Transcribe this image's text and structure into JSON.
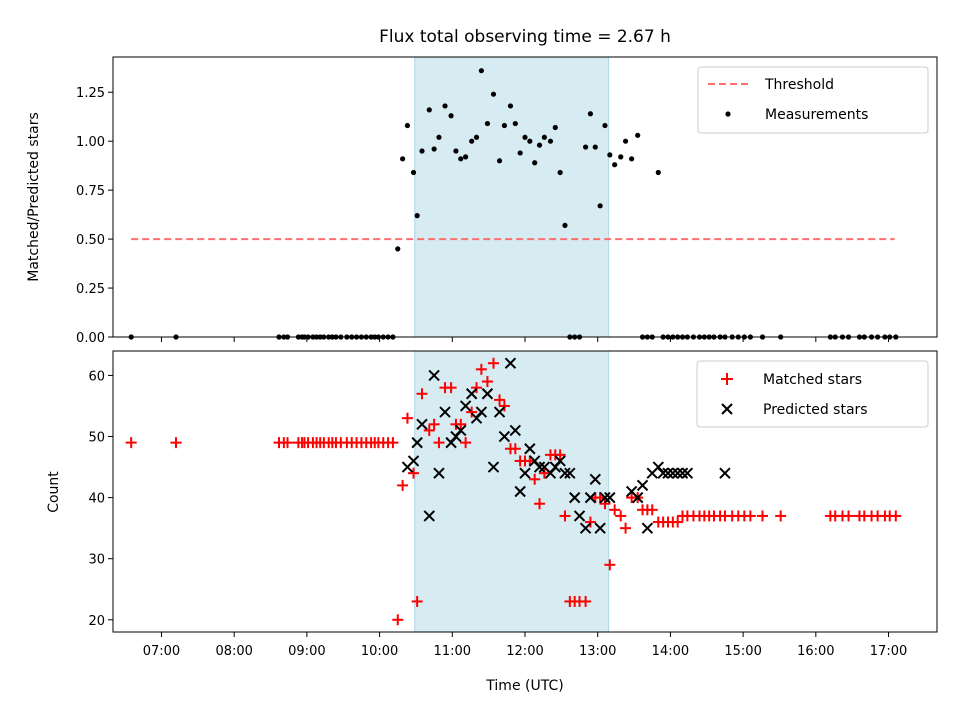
{
  "title": "Flux total observing time = 2.67 h",
  "colors": {
    "threshold": "#ff6f6f",
    "measurements": "#000000",
    "matched": "#ff0000",
    "predicted": "#000000",
    "span_fill": "#add8e6"
  },
  "chart_data": [
    {
      "type": "scatter",
      "panel": "top",
      "ylabel": "Matched/Predicted stars",
      "xlabel": "",
      "xlim": [
        "06:20",
        "17:40"
      ],
      "ylim": [
        0,
        1.43
      ],
      "yticks": [
        0.0,
        0.25,
        0.5,
        0.75,
        1.0,
        1.25
      ],
      "ytick_labels": [
        "0.00",
        "0.25",
        "0.50",
        "0.75",
        "1.00",
        "1.25"
      ],
      "xticks": [
        "07:00",
        "08:00",
        "09:00",
        "10:00",
        "11:00",
        "12:00",
        "13:00",
        "14:00",
        "15:00",
        "16:00",
        "17:00"
      ],
      "tick_labels_shown": false,
      "shaded_span": {
        "x0": "10:29",
        "x1": "13:09"
      },
      "legend": {
        "position": "upper right",
        "entries": [
          "Threshold",
          "Measurements"
        ]
      },
      "threshold": {
        "name": "Threshold",
        "y": 0.5,
        "x0": "06:35",
        "x1": "17:05",
        "style": "dashed"
      },
      "series": [
        {
          "name": "Measurements",
          "marker": "dot",
          "x": [
            "06:35",
            "07:12",
            "08:37",
            "08:41",
            "08:44",
            "08:53",
            "08:56",
            "08:58",
            "09:01",
            "09:05",
            "09:08",
            "09:11",
            "09:14",
            "09:18",
            "09:21",
            "09:24",
            "09:28",
            "09:33",
            "09:37",
            "09:41",
            "09:45",
            "09:49",
            "09:53",
            "09:56",
            "09:59",
            "10:03",
            "10:07",
            "10:11",
            "10:15",
            "10:19",
            "10:23",
            "10:28",
            "10:31",
            "10:35",
            "10:41",
            "10:45",
            "10:49",
            "10:54",
            "10:59",
            "11:03",
            "11:07",
            "11:11",
            "11:16",
            "11:20",
            "11:24",
            "11:29",
            "11:34",
            "11:39",
            "11:43",
            "11:48",
            "11:52",
            "11:56",
            "12:00",
            "12:04",
            "12:08",
            "12:12",
            "12:16",
            "12:21",
            "12:25",
            "12:29",
            "12:33",
            "12:37",
            "12:41",
            "12:45",
            "12:50",
            "12:54",
            "12:58",
            "13:02",
            "13:06",
            "13:10",
            "13:14",
            "13:19",
            "13:23",
            "13:28",
            "13:33",
            "13:37",
            "13:41",
            "13:45",
            "13:50",
            "13:54",
            "13:58",
            "14:02",
            "14:06",
            "14:10",
            "14:14",
            "14:19",
            "14:24",
            "14:28",
            "14:32",
            "14:36",
            "14:41",
            "14:45",
            "14:51",
            "14:56",
            "15:01",
            "15:06",
            "15:16",
            "15:31",
            "16:12",
            "16:16",
            "16:22",
            "16:27",
            "16:36",
            "16:40",
            "16:46",
            "16:51",
            "16:57",
            "17:01",
            "17:06"
          ],
          "y": [
            0,
            0,
            0,
            0,
            0,
            0,
            0,
            0,
            0,
            0,
            0,
            0,
            0,
            0,
            0,
            0,
            0,
            0,
            0,
            0,
            0,
            0,
            0,
            0,
            0,
            0,
            0,
            0,
            0.45,
            0.91,
            1.08,
            0.84,
            0.62,
            0.95,
            1.16,
            0.96,
            1.02,
            1.18,
            1.13,
            0.95,
            0.91,
            0.92,
            1.0,
            1.02,
            1.36,
            1.09,
            1.24,
            0.9,
            1.08,
            1.18,
            1.09,
            0.94,
            1.02,
            1.0,
            0.89,
            0.98,
            1.02,
            1.0,
            1.07,
            0.84,
            0.57,
            0,
            0,
            0,
            0.97,
            1.14,
            0.97,
            0.67,
            1.08,
            0.93,
            0.88,
            0.92,
            1.0,
            0.91,
            1.03,
            0,
            0,
            0,
            0.84,
            0,
            0,
            0,
            0,
            0,
            0,
            0,
            0,
            0,
            0,
            0,
            0,
            0,
            0,
            0,
            0,
            0,
            0,
            0,
            0,
            0,
            0,
            0,
            0,
            0,
            0,
            0,
            0,
            0,
            0
          ]
        }
      ]
    },
    {
      "type": "scatter",
      "panel": "bottom",
      "ylabel": "Count",
      "xlabel": "Time (UTC)",
      "xlim": [
        "06:20",
        "17:40"
      ],
      "ylim": [
        18,
        64
      ],
      "yticks": [
        20,
        30,
        40,
        50,
        60
      ],
      "ytick_labels": [
        "20",
        "30",
        "40",
        "50",
        "60"
      ],
      "xticks": [
        "07:00",
        "08:00",
        "09:00",
        "10:00",
        "11:00",
        "12:00",
        "13:00",
        "14:00",
        "15:00",
        "16:00",
        "17:00"
      ],
      "xtick_labels": [
        "07:00",
        "08:00",
        "09:00",
        "10:00",
        "11:00",
        "12:00",
        "13:00",
        "14:00",
        "15:00",
        "16:00",
        "17:00"
      ],
      "shaded_span": {
        "x0": "10:29",
        "x1": "13:09"
      },
      "legend": {
        "position": "upper right",
        "entries": [
          "Matched stars",
          "Predicted stars"
        ]
      },
      "series": [
        {
          "name": "Matched stars",
          "marker": "plus",
          "x": [
            "06:35",
            "07:12",
            "08:37",
            "08:41",
            "08:44",
            "08:53",
            "08:56",
            "08:58",
            "09:01",
            "09:05",
            "09:08",
            "09:11",
            "09:14",
            "09:18",
            "09:21",
            "09:24",
            "09:28",
            "09:33",
            "09:37",
            "09:41",
            "09:45",
            "09:49",
            "09:53",
            "09:56",
            "09:59",
            "10:03",
            "10:07",
            "10:11",
            "10:15",
            "10:19",
            "10:23",
            "10:28",
            "10:31",
            "10:35",
            "10:41",
            "10:45",
            "10:49",
            "10:54",
            "10:59",
            "11:03",
            "11:07",
            "11:11",
            "11:16",
            "11:20",
            "11:24",
            "11:29",
            "11:34",
            "11:39",
            "11:43",
            "11:48",
            "11:52",
            "11:56",
            "12:00",
            "12:04",
            "12:08",
            "12:12",
            "12:16",
            "12:21",
            "12:25",
            "12:29",
            "12:33",
            "12:37",
            "12:41",
            "12:45",
            "12:50",
            "12:54",
            "12:58",
            "13:02",
            "13:06",
            "13:10",
            "13:14",
            "13:19",
            "13:23",
            "13:28",
            "13:33",
            "13:37",
            "13:41",
            "13:45",
            "13:50",
            "13:54",
            "13:58",
            "14:02",
            "14:06",
            "14:10",
            "14:14",
            "14:19",
            "14:24",
            "14:28",
            "14:32",
            "14:36",
            "14:41",
            "14:45",
            "14:51",
            "14:56",
            "15:01",
            "15:06",
            "15:16",
            "15:31",
            "16:12",
            "16:16",
            "16:22",
            "16:27",
            "16:36",
            "16:40",
            "16:46",
            "16:51",
            "16:57",
            "17:01",
            "17:06"
          ],
          "y": [
            49,
            49,
            49,
            49,
            49,
            49,
            49,
            49,
            49,
            49,
            49,
            49,
            49,
            49,
            49,
            49,
            49,
            49,
            49,
            49,
            49,
            49,
            49,
            49,
            49,
            49,
            49,
            49,
            20,
            42,
            53,
            44,
            23,
            57,
            51,
            52,
            49,
            58,
            58,
            52,
            52,
            49,
            54,
            58,
            61,
            59,
            62,
            56,
            55,
            48,
            48,
            46,
            46,
            46,
            43,
            39,
            44,
            47,
            47,
            47,
            37,
            23,
            23,
            23,
            23,
            36,
            40,
            40,
            39,
            29,
            38,
            37,
            35,
            40,
            40,
            38,
            38,
            38,
            36,
            36,
            36,
            36,
            36,
            37,
            37,
            37,
            37,
            37,
            37,
            37,
            37,
            37,
            37,
            37,
            37,
            37,
            37,
            37,
            37,
            37,
            37,
            37,
            37,
            37,
            37,
            37,
            37,
            37,
            37
          ]
        },
        {
          "name": "Predicted stars",
          "marker": "x",
          "x": [
            "10:23",
            "10:28",
            "10:31",
            "10:35",
            "10:41",
            "10:45",
            "10:49",
            "10:54",
            "10:59",
            "11:03",
            "11:07",
            "11:11",
            "11:16",
            "11:20",
            "11:24",
            "11:29",
            "11:34",
            "11:39",
            "11:43",
            "11:48",
            "11:52",
            "11:56",
            "12:00",
            "12:04",
            "12:08",
            "12:12",
            "12:16",
            "12:21",
            "12:25",
            "12:29",
            "12:33",
            "12:37",
            "12:41",
            "12:45",
            "12:50",
            "12:54",
            "12:58",
            "13:02",
            "13:06",
            "13:10",
            "13:28",
            "13:33",
            "13:37",
            "13:41",
            "13:45",
            "13:50",
            "13:54",
            "13:58",
            "14:02",
            "14:06",
            "14:10",
            "14:14",
            "14:45"
          ],
          "y": [
            45,
            46,
            49,
            52,
            37,
            60,
            44,
            54,
            49,
            50,
            51,
            55,
            57,
            53,
            54,
            57,
            45,
            54,
            50,
            62,
            51,
            41,
            44,
            48,
            46,
            45,
            45,
            44,
            45,
            46,
            44,
            44,
            40,
            37,
            35,
            40,
            43,
            35,
            40,
            40,
            41,
            40,
            42,
            35,
            44,
            45,
            44,
            44,
            44,
            44,
            44,
            44,
            44
          ]
        }
      ]
    }
  ]
}
